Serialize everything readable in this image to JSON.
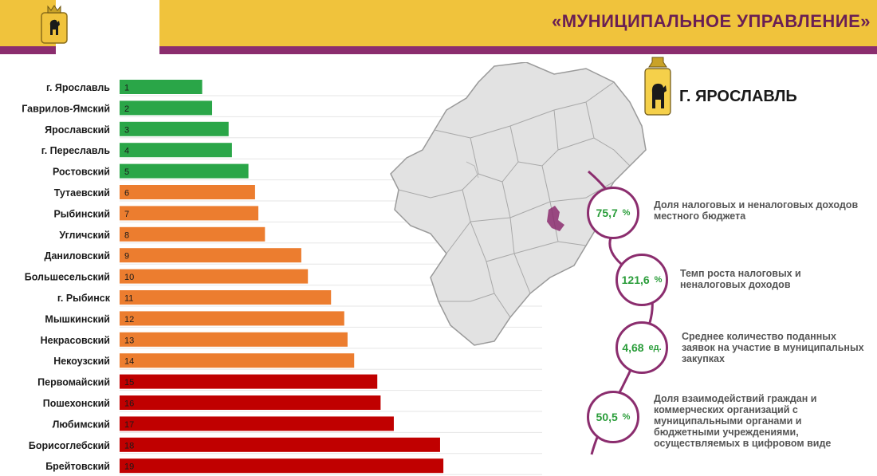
{
  "header": {
    "title": "«МУНИЦИПАЛЬНОЕ УПРАВЛЕНИЕ»"
  },
  "city": {
    "name": "Г. ЯРОСЛАВЛЬ"
  },
  "colors": {
    "green": "#2aa648",
    "orange": "#ec7d2f",
    "red": "#c00000",
    "accent": "#8b2d6e",
    "gold": "#f0c33c"
  },
  "chart_data": {
    "type": "bar",
    "orientation": "horizontal",
    "categories": [
      "г. Ярославль",
      "Гаврилов-Ямский",
      "Ярославский",
      "г. Переславль",
      "Ростовский",
      "Тутаевский",
      "Рыбинский",
      "Угличский",
      "Даниловский",
      "Большесельский",
      "г. Рыбинск",
      "Мышкинский",
      "Некрасовский",
      "Некоузский",
      "Первомайский",
      "Пошехонский",
      "Любимский",
      "Борисоглебский",
      "Брейтовский"
    ],
    "labels": [
      "1",
      "2",
      "3",
      "4",
      "5",
      "6",
      "7",
      "8",
      "9",
      "10",
      "11",
      "12",
      "13",
      "14",
      "15",
      "16",
      "17",
      "18",
      "19"
    ],
    "values": [
      1,
      2,
      3,
      4,
      5,
      6,
      7,
      8,
      9,
      10,
      11,
      12,
      13,
      14,
      15,
      16,
      17,
      18,
      19
    ],
    "bar_lengths": [
      25,
      28,
      33,
      34,
      39,
      41,
      42,
      44,
      55,
      57,
      64,
      68,
      69,
      71,
      78,
      79,
      83,
      97,
      98
    ],
    "colors": [
      "green",
      "green",
      "green",
      "green",
      "green",
      "orange",
      "orange",
      "orange",
      "orange",
      "orange",
      "orange",
      "orange",
      "orange",
      "orange",
      "red",
      "red",
      "red",
      "red",
      "red"
    ],
    "grid": true
  },
  "kpis": [
    {
      "value": "75,7",
      "unit": "%",
      "label": "Доля налоговых и неналоговых доходов местного бюджета"
    },
    {
      "value": "121,6",
      "unit": "%",
      "label": "Темп роста налоговых и неналоговых доходов"
    },
    {
      "value": "4,68",
      "unit": "ед.",
      "label": "Среднее количество поданных заявок на участие в муниципальных закупках"
    },
    {
      "value": "50,5",
      "unit": "%",
      "label": "Доля взаимодействий граждан и коммерческих организаций с муниципальными органами и бюджетными учреждениями, осуществляемых в цифровом виде"
    }
  ],
  "icons": {
    "crest": "bear-crest-icon",
    "map": "region-map"
  }
}
